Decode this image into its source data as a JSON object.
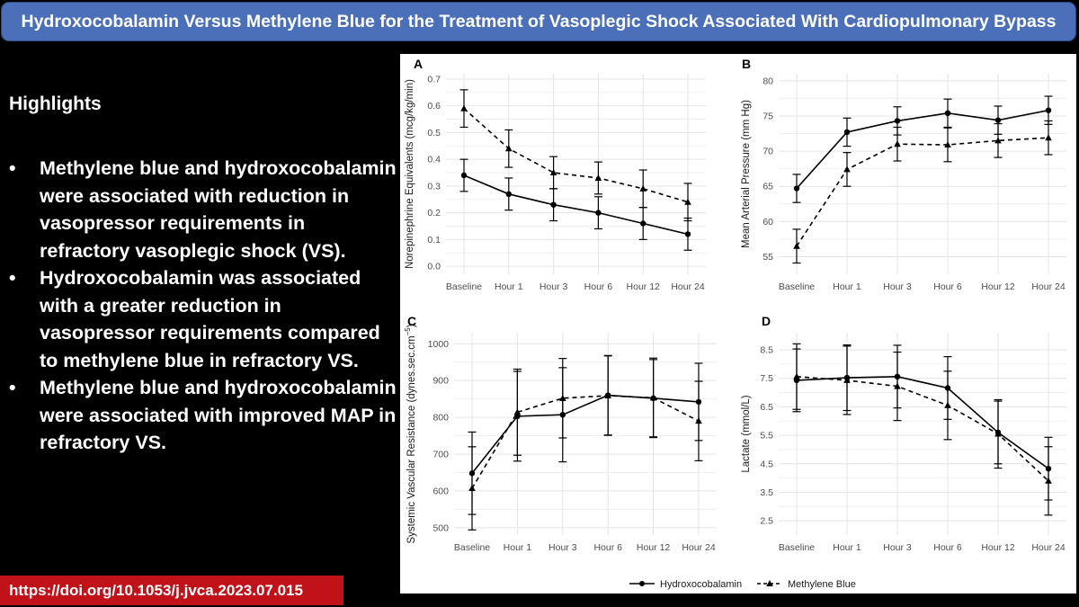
{
  "title": "Hydroxocobalamin Versus Methylene Blue for the Treatment of Vasoplegic Shock Associated With Cardiopulmonary Bypass",
  "highlights": {
    "heading": "Highlights",
    "bullet": "•",
    "items": [
      "Methylene blue and hydroxocobalamin were associated with reduction in vasopressor requirements in refractory vasoplegic shock (VS).",
      "Hydroxocobalamin was associated with a greater reduction in vasopressor requirements compared to methylene blue in refractory VS.",
      "Methylene blue and hydroxocobalamin were associated with improved MAP in refractory VS."
    ]
  },
  "doi": "https://doi.org/10.1053/j.jvca.2023.07.015",
  "legend": {
    "items": [
      {
        "name": "Hydroxocobalamin",
        "style": "solid",
        "marker": "circle"
      },
      {
        "name": "Methylene Blue",
        "style": "dashed",
        "marker": "triangle"
      }
    ]
  },
  "colors": {
    "title_bg": "#4b6fb8",
    "doi_bg": "#c1121a",
    "grid": "#e4e4e4",
    "line": "#000000"
  },
  "chart_data": [
    {
      "panel": "A",
      "type": "line",
      "categories": [
        "Baseline",
        "Hour 1",
        "Hour 3",
        "Hour 6",
        "Hour 12",
        "Hour 24"
      ],
      "ylabel": "Norepinephrine Equivalents (mcg/kg/min)",
      "ylim": [
        -0.03,
        0.72
      ],
      "yticks": [
        0.0,
        0.1,
        0.2,
        0.3,
        0.4,
        0.5,
        0.6,
        0.7
      ],
      "yticklabels": [
        "0.0",
        "0.1",
        "0.2",
        "0.3",
        "0.4",
        "0.5",
        "0.6",
        "0.7"
      ],
      "series": [
        {
          "name": "Hydroxocobalamin",
          "values": [
            0.34,
            0.27,
            0.23,
            0.2,
            0.16,
            0.12
          ],
          "err": [
            0.06,
            0.06,
            0.06,
            0.06,
            0.06,
            0.06
          ]
        },
        {
          "name": "Methylene Blue",
          "values": [
            0.59,
            0.44,
            0.35,
            0.33,
            0.29,
            0.24
          ],
          "err": [
            0.07,
            0.07,
            0.06,
            0.06,
            0.07,
            0.07
          ]
        }
      ]
    },
    {
      "panel": "B",
      "type": "line",
      "categories": [
        "Baseline",
        "Hour 1",
        "Hour 3",
        "Hour 6",
        "Hour 12",
        "Hour 24"
      ],
      "ylabel": "Mean Arterial Pressure (mm Hg)",
      "ylim": [
        52.5,
        81
      ],
      "yticks": [
        55,
        60,
        65,
        70,
        75,
        80
      ],
      "yticklabels": [
        "55",
        "60",
        "65",
        "70",
        "75",
        "80"
      ],
      "series": [
        {
          "name": "Hydroxocobalamin",
          "values": [
            64.7,
            72.7,
            74.3,
            75.4,
            74.4,
            75.8
          ],
          "err": [
            2.0,
            2.0,
            2.0,
            2.0,
            2.0,
            2.0
          ]
        },
        {
          "name": "Methylene Blue",
          "values": [
            56.5,
            67.4,
            71.0,
            70.9,
            71.5,
            71.9
          ],
          "err": [
            2.4,
            2.4,
            2.4,
            2.4,
            2.4,
            2.4
          ]
        }
      ]
    },
    {
      "panel": "C",
      "type": "line",
      "categories": [
        "Baseline",
        "Hour 1",
        "Hour 3",
        "Hour 6",
        "Hour 12",
        "Hour 24"
      ],
      "ylabel": "Systemic Vascular Resistance (dynes.sec.cm",
      "ylabel_sup": "−5",
      "ylabel_suffix": ")",
      "ylim": [
        480,
        1030
      ],
      "yticks": [
        500,
        600,
        700,
        800,
        900,
        1000
      ],
      "yticklabels": [
        "500",
        "600",
        "700",
        "800",
        "900",
        "1000"
      ],
      "series": [
        {
          "name": "Hydroxocobalamin",
          "values": [
            648,
            803,
            807,
            860,
            852,
            842
          ],
          "err": [
            112,
            122,
            128,
            108,
            105,
            105
          ]
        },
        {
          "name": "Methylene Blue",
          "values": [
            607,
            814,
            852,
            859,
            853,
            790
          ],
          "err": [
            113,
            117,
            108,
            108,
            108,
            108
          ]
        }
      ]
    },
    {
      "panel": "D",
      "type": "line",
      "categories": [
        "Baseline",
        "Hour 1",
        "Hour 3",
        "Hour 6",
        "Hour 12",
        "Hour 24"
      ],
      "ylabel": "Lactate (mmol/L)",
      "ylim": [
        2.0,
        9.1
      ],
      "yticks": [
        2.5,
        3.5,
        4.5,
        5.5,
        6.5,
        7.5,
        8.5
      ],
      "yticklabels": [
        "2.5",
        "3.5",
        "4.5",
        "5.5",
        "6.5",
        "7.5",
        "8.5"
      ],
      "series": [
        {
          "name": "Hydroxocobalamin",
          "values": [
            7.43,
            7.52,
            7.56,
            7.16,
            5.6,
            4.33
          ],
          "err": [
            1.1,
            1.15,
            1.1,
            1.1,
            1.1,
            1.1
          ]
        },
        {
          "name": "Methylene Blue",
          "values": [
            7.56,
            7.43,
            7.22,
            6.55,
            5.55,
            3.9
          ],
          "err": [
            1.15,
            1.2,
            1.2,
            1.2,
            1.2,
            1.2
          ]
        }
      ]
    }
  ]
}
